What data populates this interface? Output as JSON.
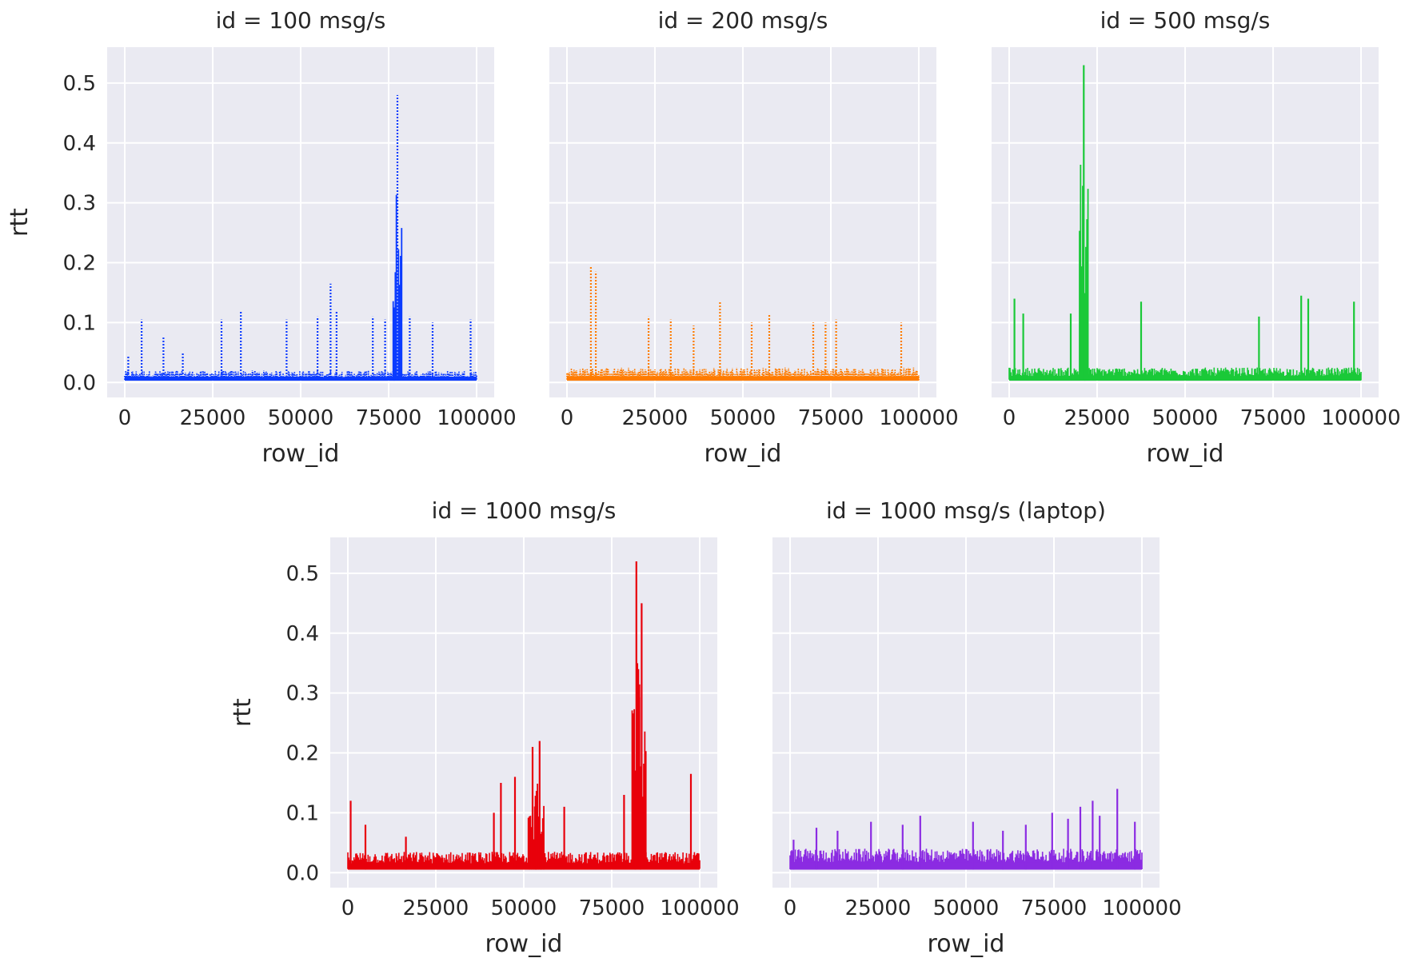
{
  "chart_data": {
    "type": "line",
    "layout": "facet-grid",
    "xlabel": "row_id",
    "ylabel": "rtt",
    "xlim": [
      -5000,
      105000
    ],
    "ylim": [
      -0.025,
      0.56
    ],
    "x_ticks": [
      0,
      25000,
      50000,
      75000,
      100000
    ],
    "y_ticks": [
      0.0,
      0.1,
      0.2,
      0.3,
      0.4,
      0.5
    ],
    "x_tick_labels": [
      "0",
      "25000",
      "50000",
      "75000",
      "100000"
    ],
    "y_tick_labels": [
      "0.0",
      "0.1",
      "0.2",
      "0.3",
      "0.4",
      "0.5"
    ],
    "grid": true,
    "panels": [
      {
        "title": "id = 100 msg/s",
        "color": "#0b3bff",
        "style": "dotted",
        "baseline": [
          0.003,
          0.02
        ],
        "spikes": [
          [
            1000,
            0.045
          ],
          [
            4800,
            0.105
          ],
          [
            11000,
            0.075
          ],
          [
            16500,
            0.05
          ],
          [
            27500,
            0.105
          ],
          [
            33000,
            0.12
          ],
          [
            46000,
            0.105
          ],
          [
            54800,
            0.11
          ],
          [
            58500,
            0.165
          ],
          [
            60200,
            0.12
          ],
          [
            70500,
            0.11
          ],
          [
            74000,
            0.105
          ],
          [
            77500,
            0.48
          ],
          [
            81000,
            0.11
          ],
          [
            87500,
            0.1
          ],
          [
            98300,
            0.105
          ]
        ]
      },
      {
        "title": "id = 200 msg/s",
        "color": "#ff7c00",
        "style": "dotted",
        "baseline": [
          0.003,
          0.025
        ],
        "spikes": [
          [
            6800,
            0.195
          ],
          [
            8200,
            0.185
          ],
          [
            23200,
            0.11
          ],
          [
            29500,
            0.105
          ],
          [
            36000,
            0.095
          ],
          [
            43500,
            0.135
          ],
          [
            52500,
            0.1
          ],
          [
            57500,
            0.115
          ],
          [
            70000,
            0.1
          ],
          [
            73500,
            0.1
          ],
          [
            76500,
            0.105
          ],
          [
            95000,
            0.1
          ]
        ]
      },
      {
        "title": "id = 500 msg/s",
        "color": "#1ac938",
        "style": "solid",
        "baseline": [
          0.003,
          0.025
        ],
        "spikes": [
          [
            1500,
            0.14
          ],
          [
            4000,
            0.115
          ],
          [
            17500,
            0.115
          ],
          [
            21200,
            0.53
          ],
          [
            37500,
            0.135
          ],
          [
            71000,
            0.11
          ],
          [
            83000,
            0.145
          ],
          [
            85000,
            0.14
          ],
          [
            98000,
            0.135
          ]
        ]
      },
      {
        "title": "id = 1000 msg/s",
        "color": "#e8000b",
        "style": "solid",
        "baseline": [
          0.005,
          0.035
        ],
        "spikes": [
          [
            800,
            0.12
          ],
          [
            5000,
            0.08
          ],
          [
            16500,
            0.06
          ],
          [
            41500,
            0.1
          ],
          [
            43500,
            0.15
          ],
          [
            47500,
            0.16
          ],
          [
            52500,
            0.21
          ],
          [
            54500,
            0.22
          ],
          [
            61500,
            0.11
          ],
          [
            78500,
            0.13
          ],
          [
            82000,
            0.52
          ],
          [
            83500,
            0.45
          ],
          [
            97500,
            0.165
          ]
        ]
      },
      {
        "title": "id = 1000 msg/s (laptop)",
        "color": "#8b2be2",
        "style": "solid",
        "baseline": [
          0.005,
          0.04
        ],
        "spikes": [
          [
            1000,
            0.055
          ],
          [
            7500,
            0.075
          ],
          [
            13500,
            0.07
          ],
          [
            23000,
            0.085
          ],
          [
            32000,
            0.08
          ],
          [
            37000,
            0.095
          ],
          [
            52000,
            0.085
          ],
          [
            60500,
            0.07
          ],
          [
            67000,
            0.08
          ],
          [
            74500,
            0.1
          ],
          [
            79000,
            0.09
          ],
          [
            82500,
            0.11
          ],
          [
            86000,
            0.12
          ],
          [
            88000,
            0.095
          ],
          [
            93000,
            0.14
          ],
          [
            98000,
            0.085
          ]
        ]
      }
    ]
  }
}
